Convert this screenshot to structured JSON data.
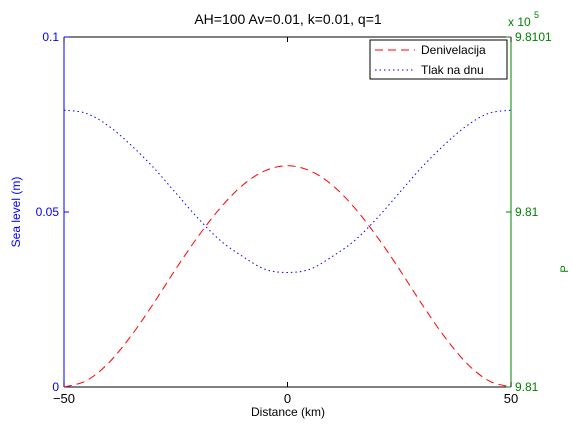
{
  "chart_data": {
    "type": "line",
    "title": "AH=100 Av=0.01, k=0.01, q=1",
    "xlabel": "Distance (km)",
    "ylabel_left": "Sea level (m)",
    "ylabel_right_partial": "P",
    "right_axis_exponent_base": "x 10",
    "right_axis_exponent_power": "5",
    "xlim": [
      -50,
      50
    ],
    "ylim_left": [
      0,
      0.1
    ],
    "ylim_right": [
      9.80999,
      9.8101
    ],
    "x_ticks": [
      "−50",
      "0",
      "50"
    ],
    "left_ticks": [
      "0",
      "0.05",
      "0.1"
    ],
    "right_ticks": [
      "9.81",
      "9.81",
      "9.8101"
    ],
    "legend_location": "top-right",
    "colors": {
      "left_axis": "#0000ff",
      "right_axis": "#008000",
      "denivelacija": "#ff0000",
      "tlak": "#0000ff"
    },
    "series": [
      {
        "name": "Denivelacija",
        "axis": "left",
        "style": "dashed",
        "x": [
          -50,
          -45,
          -40,
          -35,
          -30,
          -25,
          -20,
          -15,
          -10,
          -5,
          0,
          5,
          10,
          15,
          20,
          25,
          30,
          35,
          40,
          45,
          50
        ],
        "y": [
          0.0,
          0.0018,
          0.0069,
          0.0146,
          0.0238,
          0.0337,
          0.043,
          0.0512,
          0.0577,
          0.0618,
          0.0632,
          0.0618,
          0.0577,
          0.0512,
          0.043,
          0.0337,
          0.0238,
          0.0146,
          0.0069,
          0.0018,
          0.0
        ]
      },
      {
        "name": "Tlak na dnu",
        "axis": "right",
        "style": "dotted",
        "x": [
          -50,
          -45,
          -40,
          -35,
          -30,
          -25,
          -20,
          -15,
          -10,
          -5,
          0,
          5,
          10,
          15,
          20,
          25,
          30,
          35,
          40,
          45,
          50
        ],
        "y": [
          9.810077,
          9.810076,
          9.810072,
          9.810066,
          9.810059,
          9.810051,
          9.810043,
          9.810036,
          9.810031,
          9.810027,
          9.810026,
          9.810027,
          9.810031,
          9.810036,
          9.810043,
          9.810051,
          9.810059,
          9.810066,
          9.810072,
          9.810076,
          9.810077
        ]
      }
    ]
  }
}
